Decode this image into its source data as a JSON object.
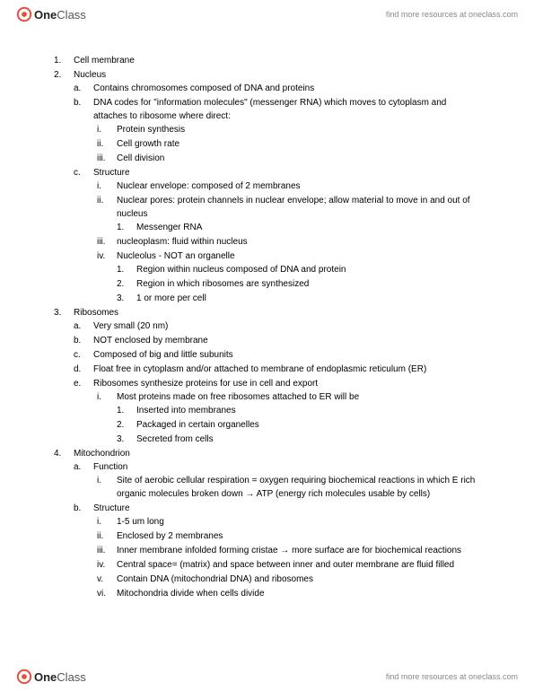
{
  "brand": {
    "prefix": "One",
    "suffix": "Class"
  },
  "resources_text": "find more resources at oneclass.com",
  "outline": {
    "items": [
      {
        "num": "1.",
        "text": "Cell membrane"
      },
      {
        "num": "2.",
        "text": "Nucleus",
        "children": [
          {
            "num": "a.",
            "text": "Contains chromosomes composed of DNA and proteins"
          },
          {
            "num": "b.",
            "text": "DNA codes for \"information molecules\" (messenger RNA) which moves to cytoplasm and attaches to ribosome where direct:",
            "children": [
              {
                "num": "i.",
                "text": "Protein synthesis"
              },
              {
                "num": "ii.",
                "text": "Cell growth rate"
              },
              {
                "num": "iii.",
                "text": "Cell division"
              }
            ]
          },
          {
            "num": "c.",
            "text": "Structure",
            "children": [
              {
                "num": "i.",
                "text": "Nuclear envelope: composed of 2 membranes"
              },
              {
                "num": "ii.",
                "text": "Nuclear pores: protein channels in nuclear envelope; allow material to move in and out of nucleus",
                "children": [
                  {
                    "num": "1.",
                    "text": "Messenger RNA"
                  }
                ]
              },
              {
                "num": "iii.",
                "text": "nucleoplasm: fluid within nucleus"
              },
              {
                "num": "iv.",
                "text": "Nucleolus - NOT an organelle",
                "children": [
                  {
                    "num": "1.",
                    "text": "Region within nucleus composed of DNA and protein"
                  },
                  {
                    "num": "2.",
                    "text": "Region in which ribosomes are synthesized"
                  },
                  {
                    "num": "3.",
                    "text": "1 or more per cell"
                  }
                ]
              }
            ]
          }
        ]
      },
      {
        "num": "3.",
        "text": "Ribosomes",
        "children": [
          {
            "num": "a.",
            "text": "Very small (20 nm)"
          },
          {
            "num": "b.",
            "text": "NOT enclosed by membrane"
          },
          {
            "num": "c.",
            "text": "Composed of big and little subunits"
          },
          {
            "num": "d.",
            "text": "Float free in cytoplasm and/or attached to membrane of endoplasmic reticulum (ER)"
          },
          {
            "num": "e.",
            "text": "Ribosomes synthesize proteins for use in cell and export",
            "children": [
              {
                "num": "i.",
                "text": "Most proteins made on free ribosomes attached to ER will be",
                "children": [
                  {
                    "num": "1.",
                    "text": "Inserted into membranes"
                  },
                  {
                    "num": "2.",
                    "text": "Packaged in certain organelles"
                  },
                  {
                    "num": "3.",
                    "text": "Secreted from cells"
                  }
                ]
              }
            ]
          }
        ]
      },
      {
        "num": "4.",
        "text": "Mitochondrion",
        "children": [
          {
            "num": "a.",
            "text": "Function",
            "children": [
              {
                "num": "i.",
                "text": "Site of aerobic cellular respiration = oxygen requiring biochemical reactions in which E rich organic molecules broken down → ATP (energy rich molecules usable by cells)"
              }
            ]
          },
          {
            "num": "b.",
            "text": "Structure",
            "children": [
              {
                "num": "i.",
                "text": "1-5 um long"
              },
              {
                "num": "ii.",
                "text": "Enclosed by 2 membranes"
              },
              {
                "num": "iii.",
                "text": "Inner membrane infolded forming cristae → more surface are for biochemical reactions"
              },
              {
                "num": "iv.",
                "text": "Central space= (matrix) and space between inner and outer membrane are fluid filled"
              },
              {
                "num": "v.",
                "text": "Contain DNA (mitochondrial DNA) and ribosomes"
              },
              {
                "num": "vi.",
                "text": "Mitochondria divide when cells divide"
              }
            ]
          }
        ]
      }
    ]
  }
}
